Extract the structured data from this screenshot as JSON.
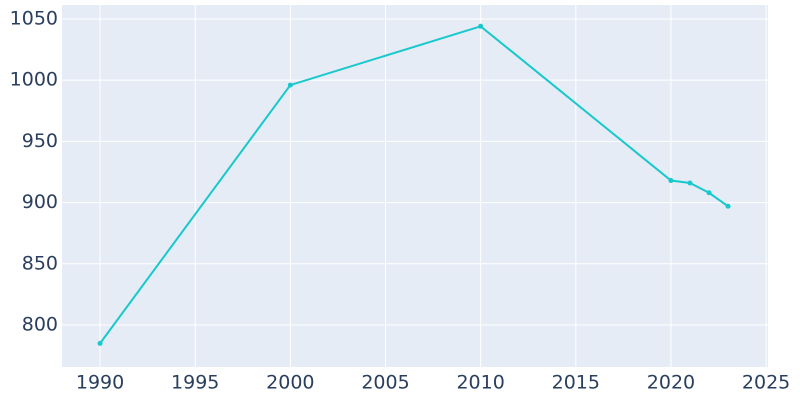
{
  "chart_data": {
    "type": "line",
    "x": [
      1990,
      2000,
      2010,
      2020,
      2021,
      2022,
      2023
    ],
    "series": [
      {
        "color": "#17c8cc",
        "values": [
          785,
          996,
          1044,
          918,
          916,
          908,
          897
        ]
      }
    ],
    "xlim": [
      1988,
      2025.1
    ],
    "xticks": [
      1990,
      1995,
      2000,
      2005,
      2010,
      2015,
      2020,
      2025
    ],
    "ylim": [
      765.7,
      1061.4
    ],
    "yticks": [
      800,
      850,
      900,
      950,
      1000,
      1050
    ],
    "grid": true,
    "background": "#e5ecf6"
  }
}
